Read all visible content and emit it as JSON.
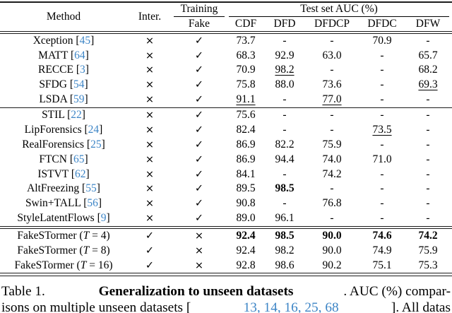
{
  "colors": {
    "cite_blue": "#3d85c6",
    "rule": "#1c1c1c"
  },
  "table": {
    "header": {
      "method": "Method",
      "inter": "Inter.",
      "training": "Training",
      "fake": "Fake",
      "auc_title": "Test set AUC (%)",
      "datasets": [
        "CDF",
        "DFD",
        "DFDCP",
        "DFDC",
        "DFW"
      ]
    },
    "symbols": {
      "yes": "✓",
      "no": "×"
    },
    "groups": [
      {
        "rows": [
          {
            "method": "Xception",
            "ref": "45",
            "inter": "no",
            "fake": "yes",
            "values": [
              "73.7",
              "-",
              "-",
              "70.9",
              "-"
            ]
          },
          {
            "method": "MATT",
            "ref": "64",
            "inter": "no",
            "fake": "yes",
            "values": [
              "68.3",
              "92.9",
              "63.0",
              "-",
              "65.7"
            ]
          },
          {
            "method": "RECCE",
            "ref": "3",
            "inter": "no",
            "fake": "yes",
            "values": [
              "70.9",
              {
                "v": "98.2",
                "style": "underline"
              },
              "-",
              "-",
              "68.2"
            ]
          },
          {
            "method": "SFDG",
            "ref": "54",
            "inter": "no",
            "fake": "yes",
            "values": [
              "75.8",
              "88.0",
              "73.6",
              "-",
              {
                "v": "69.3",
                "style": "underline"
              }
            ]
          },
          {
            "method": "LSDA",
            "ref": "59",
            "inter": "no",
            "fake": "yes",
            "values": [
              {
                "v": "91.1",
                "style": "underline"
              },
              "-",
              {
                "v": "77.0",
                "style": "underline"
              },
              "-",
              "-"
            ]
          }
        ]
      },
      {
        "rows": [
          {
            "method": "STIL",
            "ref": "22",
            "inter": "no",
            "fake": "yes",
            "values": [
              "75.6",
              "-",
              "-",
              "-",
              "-"
            ]
          },
          {
            "method": "LipForensics",
            "ref": "24",
            "inter": "no",
            "fake": "yes",
            "values": [
              "82.4",
              "-",
              "-",
              {
                "v": "73.5",
                "style": "underline"
              },
              "-"
            ]
          },
          {
            "method": "RealForensics",
            "ref": "25",
            "inter": "no",
            "fake": "yes",
            "values": [
              "86.9",
              "82.2",
              "75.9",
              "-",
              "-"
            ]
          },
          {
            "method": "FTCN",
            "ref": "65",
            "inter": "no",
            "fake": "yes",
            "values": [
              "86.9",
              "94.4",
              "74.0",
              "71.0",
              "-"
            ]
          },
          {
            "method": "ISTVT",
            "ref": "62",
            "inter": "no",
            "fake": "yes",
            "values": [
              "84.1",
              "-",
              "74.2",
              "-",
              "-"
            ]
          },
          {
            "method": "AltFreezing",
            "ref": "55",
            "inter": "no",
            "fake": "yes",
            "values": [
              "89.5",
              {
                "v": "98.5",
                "style": "bold"
              },
              "-",
              "-",
              "-"
            ]
          },
          {
            "method": "Swin+TALL",
            "ref": "56",
            "inter": "no",
            "fake": "yes",
            "values": [
              "90.8",
              "-",
              "76.8",
              "-",
              "-"
            ]
          },
          {
            "method": "StyleLatentFlows",
            "ref": "9",
            "inter": "no",
            "fake": "yes",
            "values": [
              "89.0",
              "96.1",
              "-",
              "-",
              "-"
            ]
          }
        ]
      },
      {
        "rows": [
          {
            "method": "FakeSTormer",
            "tvar": "T",
            "tval": "4",
            "inter": "yes",
            "fake": "no",
            "values": [
              {
                "v": "92.4",
                "style": "bold"
              },
              {
                "v": "98.5",
                "style": "bold"
              },
              {
                "v": "90.0",
                "style": "bold"
              },
              {
                "v": "74.6",
                "style": "bold"
              },
              {
                "v": "74.2",
                "style": "bold"
              }
            ]
          },
          {
            "method": "FakeSTormer",
            "tvar": "T",
            "tval": "8",
            "inter": "yes",
            "fake": "no",
            "values": [
              "92.4",
              "98.2",
              "90.0",
              "74.9",
              "75.9"
            ]
          },
          {
            "method": "FakeSTormer",
            "tvar": "T",
            "tval": "16",
            "inter": "yes",
            "fake": "no",
            "values": [
              "92.8",
              "98.6",
              "90.2",
              "75.1",
              "75.3"
            ]
          }
        ]
      }
    ]
  },
  "caption": {
    "line1_pre": "Table 1. ",
    "line1_bold": "Generalization to unseen datasets",
    "line1_post": ". AUC (%) compar-",
    "line2_pre": "isons on multiple unseen datasets [",
    "line2_cites": "13, 14, 16, 25, 68",
    "line2_post": "]. All datas"
  }
}
